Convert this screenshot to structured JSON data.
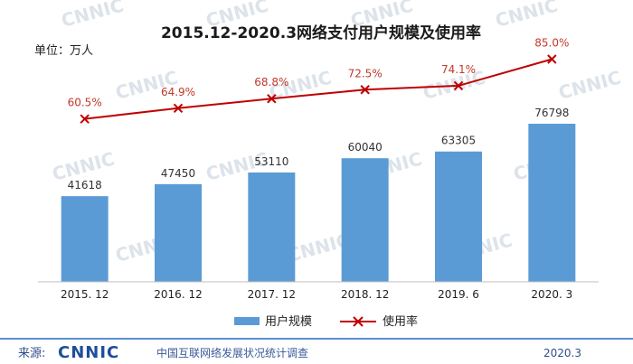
{
  "chart_data": {
    "type": "bar",
    "title": "2015.12-2020.3网络支付用户规模及使用率",
    "unit_label": "单位：万人",
    "categories": [
      "2015. 12",
      "2016. 12",
      "2017. 12",
      "2018. 12",
      "2019. 6",
      "2020. 3"
    ],
    "series": [
      {
        "name": "用户规模",
        "type": "bar",
        "values": [
          41618,
          47450,
          53110,
          60040,
          63305,
          76798
        ],
        "color": "#5b9bd5"
      },
      {
        "name": "使用率",
        "type": "line",
        "values": [
          60.5,
          64.9,
          68.8,
          72.5,
          74.1,
          85.0
        ],
        "labels": [
          "60.5%",
          "64.9%",
          "68.8%",
          "72.5%",
          "74.1%",
          "85.0%"
        ],
        "color": "#c00000"
      }
    ],
    "legend_position": "bottom",
    "grid": false
  },
  "footer": {
    "source_label": "来源:",
    "logo_text": "CNNIC",
    "org_name": "中国互联网络发展状况统计调查",
    "date": "2020.3"
  },
  "watermark": "CNNIC"
}
